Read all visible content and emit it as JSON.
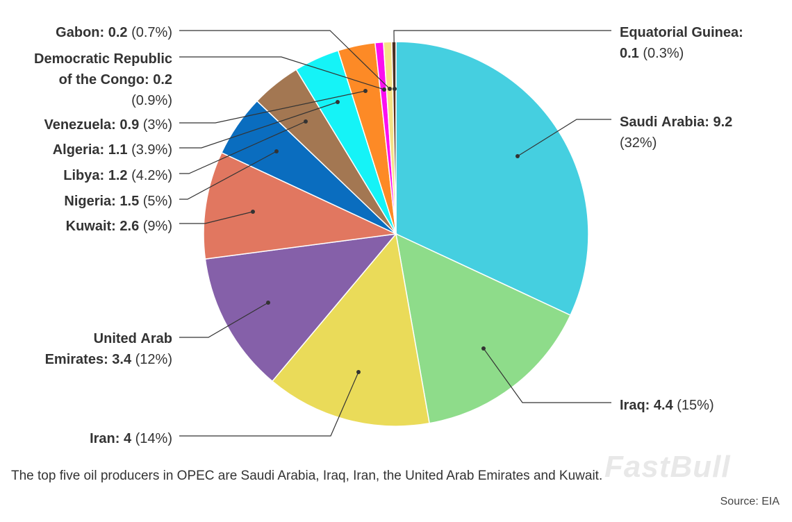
{
  "chart_data": {
    "type": "pie",
    "title": "",
    "unit_note": "",
    "slices": [
      {
        "name": "Saudi Arabia",
        "value": 9.2,
        "pct": "32%",
        "color": "#45cfe0"
      },
      {
        "name": "Iraq",
        "value": 4.4,
        "pct": "15%",
        "color": "#8edc8a"
      },
      {
        "name": "Iran",
        "value": 4,
        "pct": "14%",
        "color": "#eadb59"
      },
      {
        "name": "United Arab Emirates",
        "value": 3.4,
        "pct": "12%",
        "color": "#8560a9"
      },
      {
        "name": "Kuwait",
        "value": 2.6,
        "pct": "9%",
        "color": "#e17760"
      },
      {
        "name": "Nigeria",
        "value": 1.5,
        "pct": "5%",
        "color": "#0a6dbf"
      },
      {
        "name": "Libya",
        "value": 1.2,
        "pct": "4.2%",
        "color": "#a37752"
      },
      {
        "name": "Algeria",
        "value": 1.1,
        "pct": "3.9%",
        "color": "#15f3f7"
      },
      {
        "name": "Venezuela",
        "value": 0.9,
        "pct": "3%",
        "color": "#fd8a26"
      },
      {
        "name": "Democratic Republic of the Congo",
        "value": 0.2,
        "pct": "0.9%",
        "color": "#fb0ff0"
      },
      {
        "name": "Gabon",
        "value": 0.2,
        "pct": "0.7%",
        "color": "#f4e286"
      },
      {
        "name": "Equatorial Guinea",
        "value": 0.1,
        "pct": "0.3%",
        "color": "#5a2f1a"
      }
    ]
  },
  "labels": [
    {
      "lines": [
        [
          {
            "t": "Saudi Arabia: 9.2",
            "b": true
          }
        ],
        [
          {
            "t": "(32%)",
            "b": false
          }
        ]
      ]
    },
    {
      "lines": [
        [
          {
            "t": "Iraq: 4.4",
            "b": true
          },
          {
            "t": " (15%)",
            "b": false
          }
        ]
      ]
    },
    {
      "lines": [
        [
          {
            "t": "Iran: 4",
            "b": true
          },
          {
            "t": " (14%)",
            "b": false
          }
        ]
      ]
    },
    {
      "lines": [
        [
          {
            "t": "United Arab",
            "b": true
          }
        ],
        [
          {
            "t": "Emirates: 3.4",
            "b": true
          },
          {
            "t": " (12%)",
            "b": false
          }
        ]
      ]
    },
    {
      "lines": [
        [
          {
            "t": "Kuwait: 2.6",
            "b": true
          },
          {
            "t": " (9%)",
            "b": false
          }
        ]
      ]
    },
    {
      "lines": [
        [
          {
            "t": "Nigeria: 1.5",
            "b": true
          },
          {
            "t": " (5%)",
            "b": false
          }
        ]
      ]
    },
    {
      "lines": [
        [
          {
            "t": "Libya: 1.2",
            "b": true
          },
          {
            "t": " (4.2%)",
            "b": false
          }
        ]
      ]
    },
    {
      "lines": [
        [
          {
            "t": "Algeria: 1.1",
            "b": true
          },
          {
            "t": " (3.9%)",
            "b": false
          }
        ]
      ]
    },
    {
      "lines": [
        [
          {
            "t": "Venezuela: 0.9",
            "b": true
          },
          {
            "t": " (3%)",
            "b": false
          }
        ]
      ]
    },
    {
      "lines": [
        [
          {
            "t": "Democratic Republic",
            "b": true
          }
        ],
        [
          {
            "t": "of the Congo: 0.2",
            "b": true
          }
        ],
        [
          {
            "t": "(0.9%)",
            "b": false
          }
        ]
      ]
    },
    {
      "lines": [
        [
          {
            "t": "Gabon: 0.2",
            "b": true
          },
          {
            "t": " (0.7%)",
            "b": false
          }
        ]
      ]
    },
    {
      "lines": [
        [
          {
            "t": "Equatorial Guinea:",
            "b": true
          }
        ],
        [
          {
            "t": "0.1",
            "b": true
          },
          {
            "t": " (0.3%)",
            "b": false
          }
        ]
      ]
    }
  ],
  "caption": "The top five oil producers in OPEC are Saudi Arabia, Iraq, Iran, the United Arab Emirates and Kuwait.",
  "source": "Source: EIA",
  "watermark": "FastBull"
}
